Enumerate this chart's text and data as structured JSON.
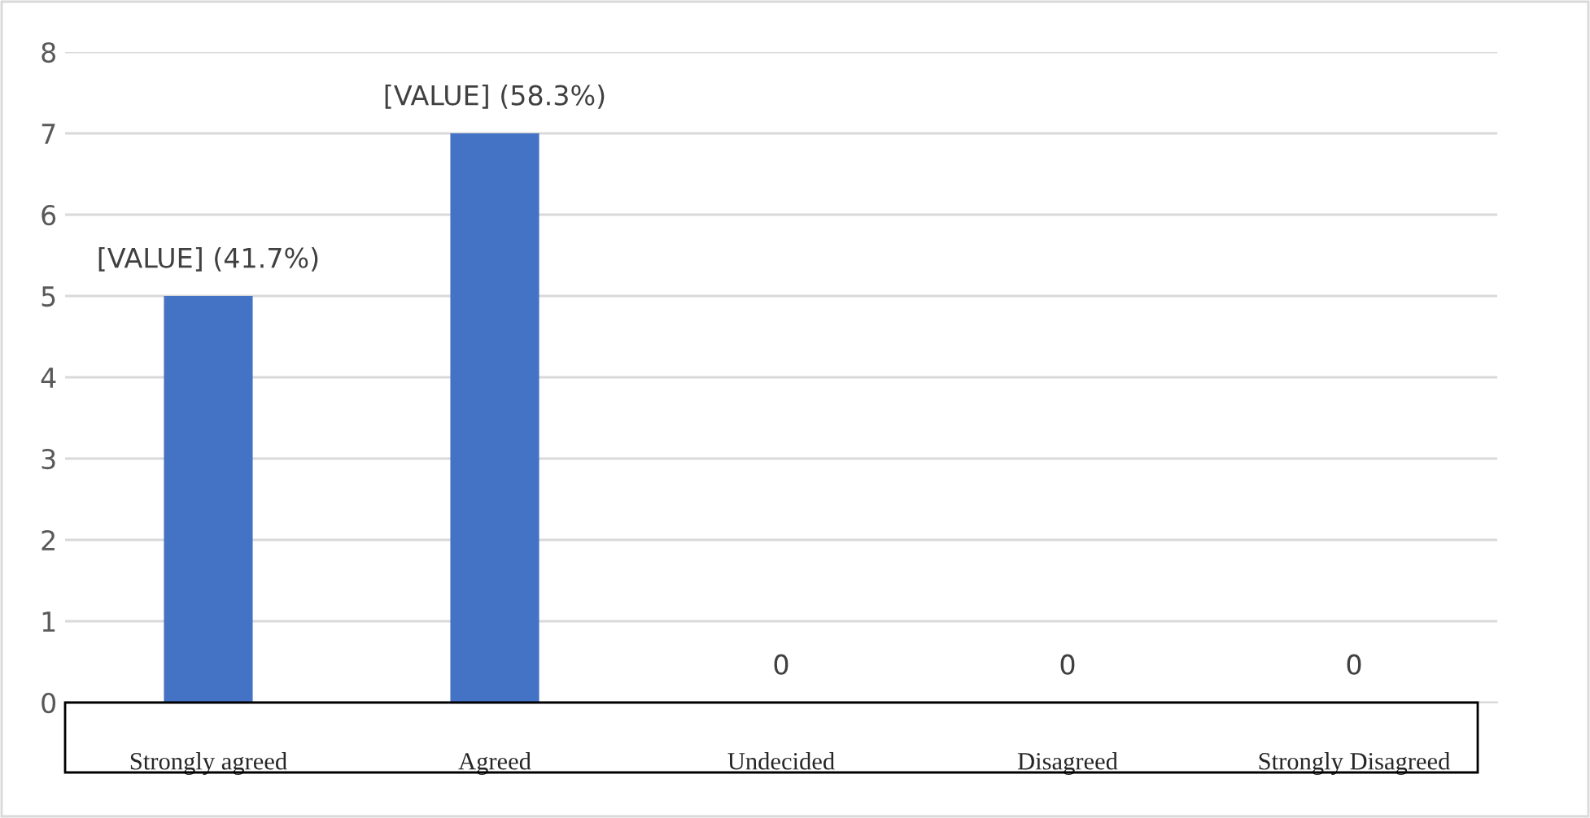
{
  "chart_data": {
    "type": "bar",
    "categories": [
      "Strongly agreed",
      "Agreed",
      "Undecided",
      "Disagreed",
      "Strongly Disagreed"
    ],
    "values": [
      5,
      7,
      0,
      0,
      0
    ],
    "annotations": [
      {
        "text": "[VALUE] (41.7%)",
        "x": "Strongly agreed",
        "y": 5
      },
      {
        "text": "[VALUE] (58.3%)",
        "x": "Agreed",
        "y": 7
      },
      {
        "text": "0",
        "x": "Undecided",
        "y": 0
      },
      {
        "text": "0",
        "x": "Disagreed",
        "y": 0
      },
      {
        "text": "0",
        "x": "Strongly Disagreed",
        "y": 0
      }
    ],
    "color": "#4472c4",
    "ylim": [
      0,
      8
    ],
    "yticks": [
      0,
      1,
      2,
      3,
      4,
      5,
      6,
      7,
      8
    ],
    "grid": "y",
    "legend": false
  }
}
